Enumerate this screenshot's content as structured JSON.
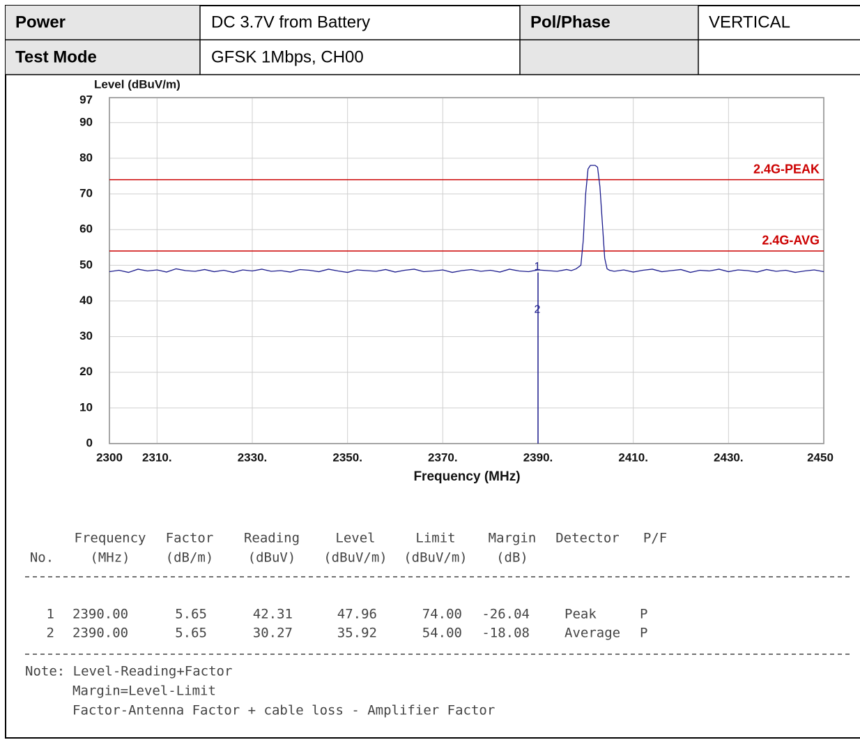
{
  "info": [
    [
      "Power",
      "DC 3.7V from Battery",
      "Pol/Phase",
      "VERTICAL"
    ],
    [
      "Test Mode",
      "GFSK 1Mbps, CH00"
    ]
  ],
  "chart_data": {
    "type": "line",
    "y_label": "Level (dBuV/m)",
    "x_label": "Frequency (MHz)",
    "xlim": [
      2300,
      2450
    ],
    "ylim": [
      0,
      97
    ],
    "xticks": [
      2300,
      {
        "value": 2310,
        "label": "2310."
      },
      {
        "value": 2330,
        "label": "2330."
      },
      {
        "value": 2350,
        "label": "2350."
      },
      {
        "value": 2370,
        "label": "2370."
      },
      {
        "value": 2390,
        "label": "2390."
      },
      {
        "value": 2410,
        "label": "2410."
      },
      {
        "value": 2430,
        "label": "2430."
      },
      2450
    ],
    "yticks": [
      0,
      10,
      20,
      30,
      40,
      50,
      60,
      70,
      80,
      90,
      97
    ],
    "grid": true,
    "limits": [
      {
        "name": "2.4G-PEAK",
        "value": 74,
        "color": "#cc0000"
      },
      {
        "name": "2.4G-AVG",
        "value": 54,
        "color": "#cc0000"
      }
    ],
    "series": [
      {
        "color": "#1a1a8c",
        "x": [
          2300,
          2302,
          2304,
          2306,
          2308,
          2310,
          2312,
          2314,
          2316,
          2318,
          2320,
          2322,
          2324,
          2326,
          2328,
          2330,
          2332,
          2334,
          2336,
          2338,
          2340,
          2342,
          2344,
          2346,
          2348,
          2350,
          2352,
          2354,
          2356,
          2358,
          2360,
          2362,
          2364,
          2366,
          2368,
          2370,
          2372,
          2374,
          2376,
          2378,
          2380,
          2382,
          2384,
          2386,
          2388,
          2390,
          2392,
          2394,
          2396,
          2397,
          2398,
          2399,
          2399.5,
          2400,
          2400.5,
          2401,
          2402,
          2402.5,
          2403,
          2403.5,
          2404,
          2404.5,
          2405,
          2406,
          2408,
          2410,
          2412,
          2414,
          2416,
          2418,
          2420,
          2422,
          2424,
          2426,
          2428,
          2430,
          2432,
          2434,
          2436,
          2438,
          2440,
          2442,
          2444,
          2446,
          2448,
          2450
        ],
        "values": [
          48.2,
          48.6,
          48.0,
          48.9,
          48.4,
          48.7,
          48.1,
          49.0,
          48.5,
          48.3,
          48.8,
          48.2,
          48.6,
          48.0,
          48.7,
          48.4,
          48.9,
          48.3,
          48.5,
          48.1,
          48.8,
          48.6,
          48.2,
          48.9,
          48.4,
          48.0,
          48.7,
          48.5,
          48.3,
          48.8,
          48.1,
          48.6,
          48.9,
          48.2,
          48.4,
          48.7,
          48.0,
          48.5,
          48.8,
          48.3,
          48.6,
          48.1,
          48.9,
          48.4,
          48.2,
          48.7,
          48.5,
          48.3,
          48.8,
          48.5,
          49.0,
          50,
          57,
          70,
          77,
          78,
          78,
          77.5,
          72,
          62,
          52,
          49,
          48.6,
          48.3,
          48.7,
          48.1,
          48.6,
          48.9,
          48.2,
          48.5,
          48.8,
          48.0,
          48.6,
          48.4,
          48.9,
          48.2,
          48.7,
          48.5,
          48.1,
          48.8,
          48.3,
          48.6,
          48.0,
          48.4,
          48.7,
          48.2
        ]
      }
    ],
    "markers": [
      {
        "label": "1",
        "x": 2390,
        "y": 47.96
      },
      {
        "label": "2",
        "x": 2390,
        "y": 35.92
      }
    ]
  },
  "results": {
    "columns": [
      [
        "No."
      ],
      [
        "Frequency",
        "(MHz)"
      ],
      [
        "Factor",
        "(dB/m)"
      ],
      [
        "Reading",
        "(dBuV)"
      ],
      [
        "Level",
        "(dBuV/m)"
      ],
      [
        "Limit",
        "(dBuV/m)"
      ],
      [
        "Margin",
        "(dB)"
      ],
      [
        "Detector"
      ],
      [
        "P/F"
      ]
    ],
    "rows": [
      [
        "1",
        "2390.00",
        "5.65",
        "42.31",
        "47.96",
        "74.00",
        "-26.04",
        "Peak",
        "P"
      ],
      [
        "2",
        "2390.00",
        "5.65",
        "30.27",
        "35.92",
        "54.00",
        "-18.08",
        "Average",
        "P"
      ]
    ]
  },
  "notes": [
    "Note: Level-Reading+Factor",
    "Margin=Level-Limit",
    "Factor-Antenna Factor + cable loss - Amplifier Factor"
  ]
}
